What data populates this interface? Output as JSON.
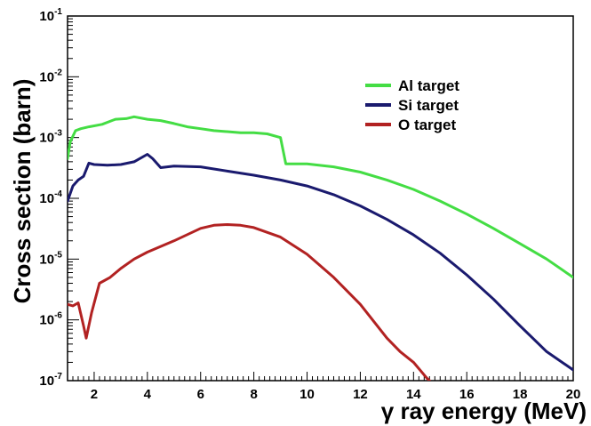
{
  "chart_data": {
    "type": "line",
    "xlabel": "γ ray energy (MeV)",
    "ylabel": "Cross section (barn)",
    "xlim": [
      1,
      20
    ],
    "ylim": [
      1e-07,
      0.1
    ],
    "y_scale": "log",
    "grid": false,
    "legend_position": "top-right",
    "x_ticks": [
      2,
      4,
      6,
      8,
      10,
      12,
      14,
      16,
      18,
      20
    ],
    "y_ticks": [
      {
        "value": 1e-07,
        "base": "10",
        "exp": "-7"
      },
      {
        "value": 1e-06,
        "base": "10",
        "exp": "-6"
      },
      {
        "value": 1e-05,
        "base": "10",
        "exp": "-5"
      },
      {
        "value": 0.0001,
        "base": "10",
        "exp": "-4"
      },
      {
        "value": 0.001,
        "base": "10",
        "exp": "-3"
      },
      {
        "value": 0.01,
        "base": "10",
        "exp": "-2"
      },
      {
        "value": 0.1,
        "base": "10",
        "exp": "-1"
      }
    ],
    "series": [
      {
        "name": "Al target",
        "color": "#44dd44",
        "x": [
          1.0,
          1.1,
          1.3,
          1.5,
          1.8,
          2.3,
          2.8,
          3.2,
          3.5,
          4.0,
          4.5,
          5.0,
          5.5,
          6.0,
          6.5,
          7.0,
          7.5,
          8.0,
          8.5,
          9.0,
          9.2,
          10.0,
          11.0,
          12.0,
          13.0,
          14.0,
          15.0,
          16.0,
          17.0,
          18.0,
          19.0,
          20.0
        ],
        "y": [
          0.00045,
          0.00085,
          0.0013,
          0.0014,
          0.0015,
          0.00165,
          0.002,
          0.00205,
          0.0022,
          0.002,
          0.0019,
          0.0017,
          0.0015,
          0.0014,
          0.0013,
          0.00125,
          0.0012,
          0.0012,
          0.00115,
          0.001,
          0.00037,
          0.00037,
          0.00033,
          0.00027,
          0.0002,
          0.00014,
          9e-05,
          5.5e-05,
          3.2e-05,
          1.8e-05,
          1e-05,
          5e-06
        ]
      },
      {
        "name": "Si target",
        "color": "#1a1a6e",
        "x": [
          1.0,
          1.2,
          1.4,
          1.6,
          1.8,
          2.0,
          2.5,
          3.0,
          3.5,
          4.0,
          4.2,
          4.5,
          5.0,
          6.0,
          7.0,
          8.0,
          9.0,
          10.0,
          11.0,
          12.0,
          13.0,
          14.0,
          15.0,
          16.0,
          17.0,
          18.0,
          19.0,
          20.0
        ],
        "y": [
          9e-05,
          0.00016,
          0.0002,
          0.00023,
          0.00038,
          0.00036,
          0.00035,
          0.00036,
          0.0004,
          0.00053,
          0.00045,
          0.00032,
          0.00034,
          0.00033,
          0.00028,
          0.00024,
          0.0002,
          0.00016,
          0.000115,
          7.5e-05,
          4.5e-05,
          2.5e-05,
          1.25e-05,
          5.5e-06,
          2.2e-06,
          8e-07,
          3e-07,
          1.5e-07
        ]
      },
      {
        "name": "O target",
        "color": "#b22222",
        "x": [
          1.0,
          1.2,
          1.4,
          1.6,
          1.7,
          1.9,
          2.2,
          2.6,
          3.0,
          3.5,
          4.0,
          5.0,
          6.0,
          6.5,
          7.0,
          7.5,
          8.0,
          9.0,
          10.0,
          11.0,
          12.0,
          13.0,
          13.5,
          14.0,
          14.5,
          14.6
        ],
        "y": [
          1.8e-06,
          1.7e-06,
          1.9e-06,
          8e-07,
          5e-07,
          1.3e-06,
          4e-06,
          5e-06,
          7e-06,
          1e-05,
          1.3e-05,
          2e-05,
          3.2e-05,
          3.6e-05,
          3.7e-05,
          3.6e-05,
          3.3e-05,
          2.3e-05,
          1.2e-05,
          5e-06,
          1.8e-06,
          5e-07,
          3e-07,
          2e-07,
          1.1e-07,
          1e-07
        ]
      }
    ]
  }
}
